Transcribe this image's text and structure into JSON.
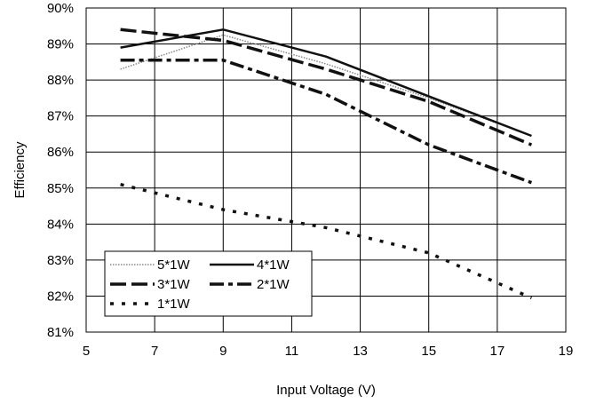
{
  "chart_data": {
    "type": "line",
    "title": "",
    "xlabel": "Input Voltage (V)",
    "ylabel": "Efficiency",
    "xlim": [
      5,
      19
    ],
    "ylim": [
      81,
      90
    ],
    "x_ticks": [
      "5",
      "7",
      "9",
      "11",
      "13",
      "15",
      "17",
      "19"
    ],
    "y_ticks": [
      "81%",
      "82%",
      "83%",
      "84%",
      "85%",
      "86%",
      "87%",
      "88%",
      "89%",
      "90%"
    ],
    "grid": true,
    "legend_position": "lower-left",
    "series": [
      {
        "name": "5*1W",
        "style": "dotted-thin",
        "x": [
          6,
          9,
          12,
          15,
          18
        ],
        "y": [
          88.3,
          89.25,
          88.45,
          87.5,
          86.45
        ]
      },
      {
        "name": "4*1W",
        "style": "solid",
        "x": [
          6,
          9,
          12,
          15,
          18
        ],
        "y": [
          88.9,
          89.4,
          88.65,
          87.55,
          86.45
        ]
      },
      {
        "name": "3*1W",
        "style": "long-dash",
        "x": [
          6,
          9,
          12,
          15,
          18
        ],
        "y": [
          89.4,
          89.1,
          88.3,
          87.4,
          86.2
        ]
      },
      {
        "name": "2*1W",
        "style": "dash-dot",
        "x": [
          6,
          9,
          12,
          15,
          18
        ],
        "y": [
          88.55,
          88.55,
          87.6,
          86.2,
          85.15
        ]
      },
      {
        "name": "1*1W",
        "style": "dotted-thick",
        "x": [
          6,
          9,
          12,
          15,
          18
        ],
        "y": [
          85.1,
          84.4,
          83.9,
          83.2,
          81.95
        ]
      }
    ]
  }
}
